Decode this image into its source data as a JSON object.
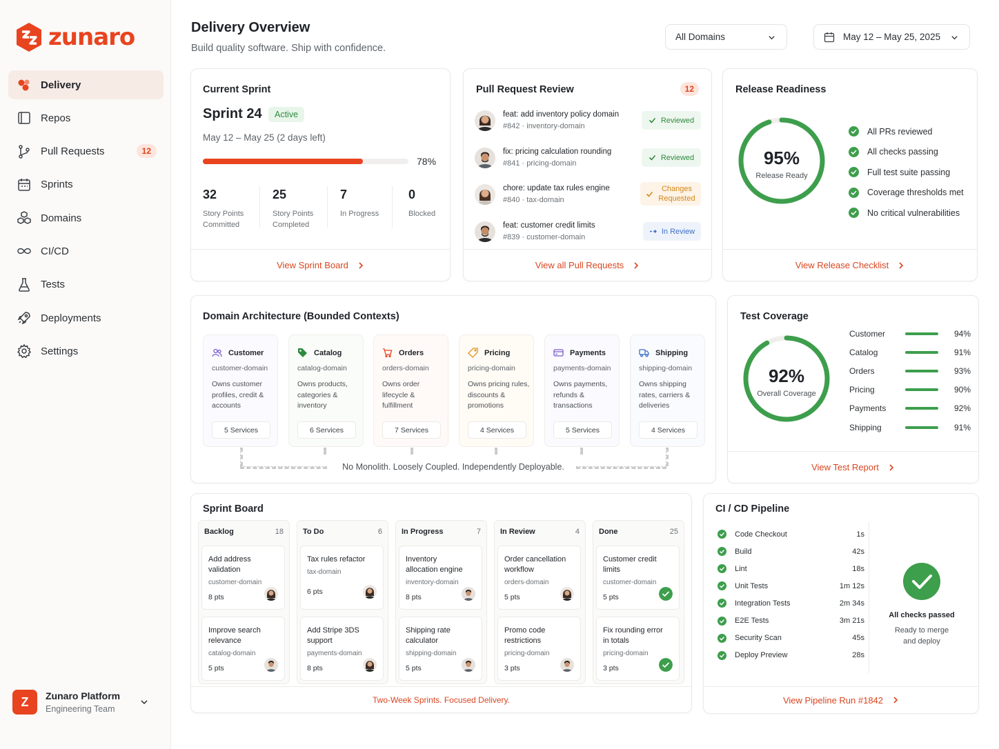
{
  "brand": {
    "name": "zunaro",
    "accent": "#e8441f"
  },
  "sidebar": {
    "items": [
      {
        "label": "Delivery",
        "icon": "delivery-icon",
        "active": true
      },
      {
        "label": "Repos",
        "icon": "repo-icon"
      },
      {
        "label": "Pull Requests",
        "icon": "pull-request-icon",
        "badge": "12"
      },
      {
        "label": "Sprints",
        "icon": "calendar-icon"
      },
      {
        "label": "Domains",
        "icon": "domains-icon"
      },
      {
        "label": "CI/CD",
        "icon": "infinity-icon"
      },
      {
        "label": "Tests",
        "icon": "flask-icon"
      },
      {
        "label": "Deployments",
        "icon": "rocket-icon"
      },
      {
        "label": "Settings",
        "icon": "gear-icon"
      }
    ],
    "user": {
      "initial": "Z",
      "name": "Zunaro Platform",
      "team": "Engineering Team"
    }
  },
  "header": {
    "title": "Delivery Overview",
    "subtitle": "Build quality software. Ship with confidence.",
    "domain_filter": "All Domains",
    "date_range": "May 12 – May 25, 2025"
  },
  "sprint": {
    "title": "Current Sprint",
    "name": "Sprint 24",
    "status": "Active",
    "dates": "May 12 – May 25 (2 days left)",
    "progress": 78,
    "progress_label": "78%",
    "stats": [
      {
        "value": "32",
        "label1": "Story Points",
        "label2": "Committed"
      },
      {
        "value": "25",
        "label1": "Story Points",
        "label2": "Completed"
      },
      {
        "value": "7",
        "label1": "In Progress",
        "label2": ""
      },
      {
        "value": "0",
        "label1": "Blocked",
        "label2": ""
      }
    ],
    "footer": "View Sprint Board"
  },
  "pr_review": {
    "title": "Pull Request Review",
    "count": "12",
    "items": [
      {
        "title": "feat: add inventory policy domain",
        "meta": "#842 · inventory-domain",
        "status": "Reviewed",
        "type": "reviewed"
      },
      {
        "title": "fix: pricing calculation rounding",
        "meta": "#841 · pricing-domain",
        "status": "Reviewed",
        "type": "reviewed"
      },
      {
        "title": "chore: update tax rules engine",
        "meta": "#840 · tax-domain",
        "status": "Changes Requested",
        "status1": "Changes",
        "status2": "Requested",
        "type": "changes"
      },
      {
        "title": "feat: customer credit limits",
        "meta": "#839 · customer-domain",
        "status": "In Review",
        "type": "inreview"
      }
    ],
    "footer": "View all Pull Requests"
  },
  "release": {
    "title": "Release Readiness",
    "value": 95,
    "value_label": "95%",
    "caption": "Release Ready",
    "checks": [
      "All PRs reviewed",
      "All checks passing",
      "Full test suite passing",
      "Coverage thresholds met",
      "No critical vulnerabilities"
    ],
    "footer": "View Release Checklist"
  },
  "domains": {
    "title": "Domain Architecture (Bounded Contexts)",
    "items": [
      {
        "name": "Customer",
        "id": "customer-domain",
        "desc": "Owns customer profiles, credit & accounts",
        "services": "5 Services",
        "icon": "users-icon",
        "color": "#7a5cc9"
      },
      {
        "name": "Catalog",
        "id": "catalog-domain",
        "desc": "Owns products, categories & inventory",
        "services": "6 Services",
        "icon": "tag-icon",
        "color": "#2f8a3f"
      },
      {
        "name": "Orders",
        "id": "orders-domain",
        "desc": "Owns order lifecycle & fulfillment",
        "services": "7 Services",
        "icon": "cart-icon",
        "color": "#e8441f"
      },
      {
        "name": "Pricing",
        "id": "pricing-domain",
        "desc": "Owns pricing rules, discounts & promotions",
        "services": "4 Services",
        "icon": "price-tag-icon",
        "color": "#e0951d"
      },
      {
        "name": "Payments",
        "id": "payments-domain",
        "desc": "Owns payments, refunds & transactions",
        "services": "5 Services",
        "icon": "card-icon",
        "color": "#7a5cc9"
      },
      {
        "name": "Shipping",
        "id": "shipping-domain",
        "desc": "Owns shipping rates, carriers & deliveries",
        "services": "4 Services",
        "icon": "truck-icon",
        "color": "#3d6fc4"
      }
    ],
    "tagline": "No Monolith. Loosely Coupled. Independently Deployable."
  },
  "coverage": {
    "title": "Test Coverage",
    "value": 92,
    "value_label": "92%",
    "caption": "Overall Coverage",
    "rows": [
      {
        "name": "Customer",
        "pct": "94%"
      },
      {
        "name": "Catalog",
        "pct": "91%"
      },
      {
        "name": "Orders",
        "pct": "93%"
      },
      {
        "name": "Pricing",
        "pct": "90%"
      },
      {
        "name": "Payments",
        "pct": "92%"
      },
      {
        "name": "Shipping",
        "pct": "91%"
      }
    ],
    "footer": "View Test Report"
  },
  "sprint_board": {
    "title": "Sprint Board",
    "columns": [
      {
        "name": "Backlog",
        "count": "18",
        "tasks": [
          {
            "title": "Add address validation",
            "domain": "customer-domain",
            "pts": "8 pts",
            "avatar": "female"
          },
          {
            "title": "Improve search relevance",
            "domain": "catalog-domain",
            "pts": "5 pts",
            "avatar": "male"
          }
        ]
      },
      {
        "name": "To Do",
        "count": "6",
        "tasks": [
          {
            "title": "Tax rules refactor",
            "domain": "tax-domain",
            "pts": "6 pts",
            "avatar": "female"
          },
          {
            "title": "Add Stripe 3DS support",
            "domain": "payments-domain",
            "pts": "8 pts",
            "avatar": "female"
          }
        ]
      },
      {
        "name": "In Progress",
        "count": "7",
        "tasks": [
          {
            "title": "Inventory allocation engine",
            "domain": "inventory-domain",
            "pts": "8 pts",
            "avatar": "male"
          },
          {
            "title": "Shipping rate calculator",
            "domain": "shipping-domain",
            "pts": "5 pts",
            "avatar": "male"
          }
        ]
      },
      {
        "name": "In Review",
        "count": "4",
        "tasks": [
          {
            "title": "Order cancellation workflow",
            "domain": "orders-domain",
            "pts": "5 pts",
            "avatar": "female"
          },
          {
            "title": "Promo code restrictions",
            "domain": "pricing-domain",
            "pts": "3 pts",
            "avatar": "male"
          }
        ]
      },
      {
        "name": "Done",
        "count": "25",
        "tasks": [
          {
            "title": "Customer credit limits",
            "domain": "customer-domain",
            "pts": "5 pts",
            "avatar": "check"
          },
          {
            "title": "Fix rounding error in totals",
            "domain": "pricing-domain",
            "pts": "3 pts",
            "avatar": "check"
          }
        ]
      }
    ],
    "footer": "Two-Week Sprints.  Focused Delivery."
  },
  "pipeline": {
    "title": "CI / CD Pipeline",
    "steps": [
      {
        "name": "Code Checkout",
        "time": "1s"
      },
      {
        "name": "Build",
        "time": "42s"
      },
      {
        "name": "Lint",
        "time": "18s"
      },
      {
        "name": "Unit Tests",
        "time": "1m 12s"
      },
      {
        "name": "Integration Tests",
        "time": "2m 34s"
      },
      {
        "name": "E2E Tests",
        "time": "3m 21s"
      },
      {
        "name": "Security Scan",
        "time": "45s"
      },
      {
        "name": "Deploy Preview",
        "time": "28s"
      }
    ],
    "status": "All checks passed",
    "note1": "Ready to merge",
    "note2": "and deploy",
    "footer": "View Pipeline Run #1842"
  }
}
